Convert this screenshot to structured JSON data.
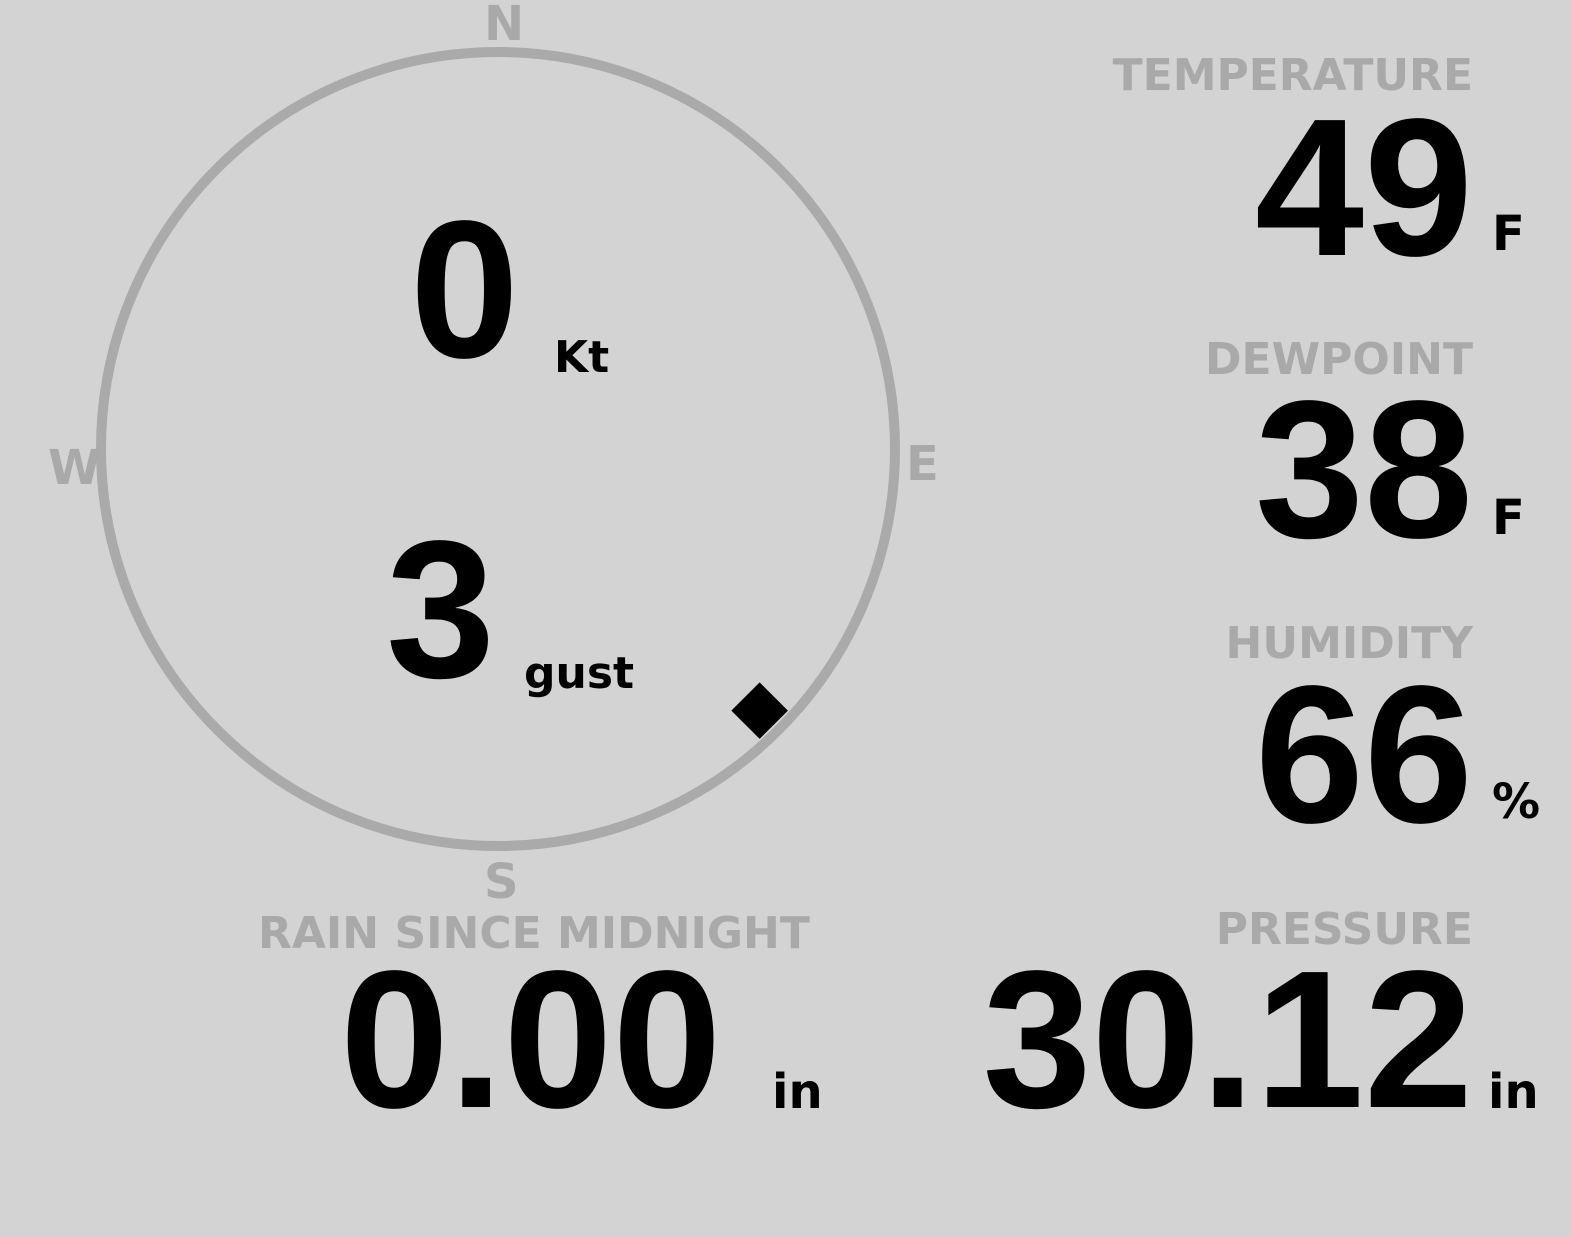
{
  "wind": {
    "speed": "0",
    "speed_unit": "Kt",
    "gust": "3",
    "gust_unit": "gust",
    "direction_deg": 135,
    "cardinals": {
      "n": "N",
      "e": "E",
      "s": "S",
      "w": "W"
    }
  },
  "temperature": {
    "label": "TEMPERATURE",
    "value": "49",
    "unit": "F"
  },
  "dewpoint": {
    "label": "DEWPOINT",
    "value": "38",
    "unit": "F"
  },
  "humidity": {
    "label": "HUMIDITY",
    "value": "66",
    "unit": "%"
  },
  "rain": {
    "label": "RAIN SINCE MIDNIGHT",
    "value": "0.00",
    "unit": "in"
  },
  "pressure": {
    "label": "PRESSURE",
    "value": "30.12",
    "unit": "in"
  },
  "colors": {
    "background": "#d3d3d3",
    "muted": "#a9a9a9",
    "value": "#000000"
  }
}
